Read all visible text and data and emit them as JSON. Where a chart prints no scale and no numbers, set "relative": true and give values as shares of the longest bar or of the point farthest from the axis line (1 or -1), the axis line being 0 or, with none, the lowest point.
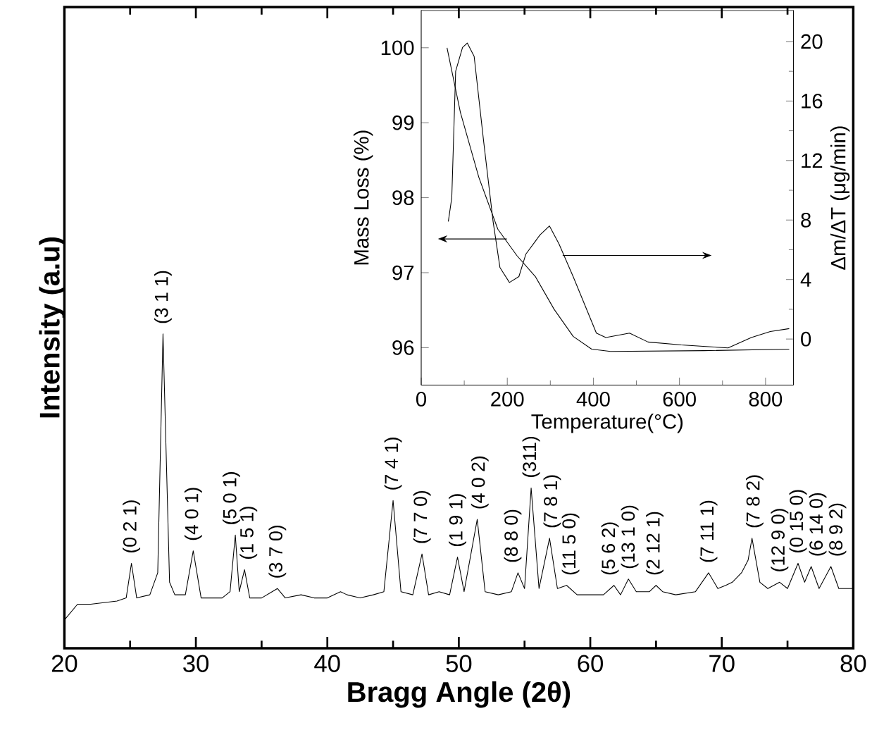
{
  "chart_data": [
    {
      "type": "line",
      "relative": true,
      "xlabel": "Bragg Angle (2θ)",
      "ylabel": "Intensity (a.u)",
      "xlim": [
        20,
        80
      ],
      "xticks": [
        20,
        30,
        40,
        50,
        60,
        70,
        80
      ],
      "color": "#000000",
      "x": [
        20,
        21,
        22,
        24,
        24.7,
        25.1,
        25.5,
        26.5,
        27.1,
        27.5,
        28,
        28.4,
        29.2,
        29.8,
        30.4,
        31,
        32,
        32.6,
        33.0,
        33.3,
        33.7,
        34.1,
        35,
        35.8,
        36.2,
        36.8,
        38,
        39,
        40,
        41,
        41.5,
        42.5,
        43.5,
        44.3,
        45.0,
        45.6,
        46.5,
        47.2,
        47.7,
        48.5,
        49.3,
        49.9,
        50.4,
        51.4,
        52,
        53,
        54,
        54.5,
        55,
        55.5,
        56.1,
        56.9,
        57.5,
        58.2,
        59,
        60,
        61,
        61.8,
        62.3,
        62.9,
        63.5,
        64.5,
        65.0,
        65.5,
        66.5,
        68,
        69.0,
        69.7,
        70.3,
        70.8,
        71.5,
        72.0,
        72.3,
        72.9,
        73.5,
        74.4,
        75.0,
        75.8,
        76.3,
        76.8,
        77.4,
        78.3,
        78.9,
        80
      ],
      "values": [
        0.09,
        0.14,
        0.14,
        0.15,
        0.16,
        0.27,
        0.16,
        0.17,
        0.24,
        1.0,
        0.21,
        0.17,
        0.17,
        0.31,
        0.16,
        0.16,
        0.16,
        0.18,
        0.36,
        0.18,
        0.25,
        0.16,
        0.16,
        0.18,
        0.19,
        0.16,
        0.17,
        0.16,
        0.16,
        0.18,
        0.17,
        0.16,
        0.17,
        0.18,
        0.47,
        0.18,
        0.17,
        0.3,
        0.17,
        0.18,
        0.17,
        0.29,
        0.18,
        0.41,
        0.18,
        0.17,
        0.18,
        0.24,
        0.19,
        0.51,
        0.19,
        0.35,
        0.19,
        0.2,
        0.17,
        0.17,
        0.17,
        0.2,
        0.17,
        0.22,
        0.18,
        0.18,
        0.2,
        0.18,
        0.17,
        0.18,
        0.24,
        0.19,
        0.2,
        0.21,
        0.24,
        0.28,
        0.35,
        0.21,
        0.19,
        0.21,
        0.19,
        0.27,
        0.21,
        0.26,
        0.19,
        0.26,
        0.19,
        0.19
      ],
      "annotations": [
        {
          "text": "(0 2 1)",
          "x": 25.1,
          "y": 0.27
        },
        {
          "text": "(3 1 1)",
          "x": 27.5,
          "y": 1.0
        },
        {
          "text": "(4 0 1)",
          "x": 29.8,
          "y": 0.31
        },
        {
          "text": "(5 0 1)",
          "x": 32.7,
          "y": 0.36
        },
        {
          "text": "(1 5 1)",
          "x": 34.0,
          "y": 0.25
        },
        {
          "text": "(3 7 0)",
          "x": 36.2,
          "y": 0.19
        },
        {
          "text": "(7 4 1)",
          "x": 45.0,
          "y": 0.47
        },
        {
          "text": "(7 7 0)",
          "x": 47.2,
          "y": 0.3
        },
        {
          "text": "(1 9 1)",
          "x": 49.9,
          "y": 0.29
        },
        {
          "text": "(4 0 2)",
          "x": 51.6,
          "y": 0.41
        },
        {
          "text": "(8 8 0)",
          "x": 54.1,
          "y": 0.24
        },
        {
          "text": "(311)",
          "x": 55.5,
          "y": 0.51
        },
        {
          "text": "(7 8 1)",
          "x": 57.1,
          "y": 0.35
        },
        {
          "text": "(11 5 0)",
          "x": 58.5,
          "y": 0.2
        },
        {
          "text": "(5 6 2)",
          "x": 61.5,
          "y": 0.2
        },
        {
          "text": "(13 1 0)",
          "x": 63.0,
          "y": 0.22
        },
        {
          "text": "(2 12 1)",
          "x": 64.9,
          "y": 0.2
        },
        {
          "text": "(7 11 1)",
          "x": 69.0,
          "y": 0.24
        },
        {
          "text": "(7 8 2)",
          "x": 72.5,
          "y": 0.35
        },
        {
          "text": "(12 9 0)",
          "x": 74.4,
          "y": 0.21
        },
        {
          "text": "(0 15 0)",
          "x": 75.8,
          "y": 0.27
        },
        {
          "text": "(6 14 0)",
          "x": 77.3,
          "y": 0.26
        },
        {
          "text": "(8 9 2)",
          "x": 78.8,
          "y": 0.26
        }
      ]
    },
    {
      "type": "line",
      "xlabel": "Temperature(°C)",
      "ylabel": "Mass Loss (%)",
      "y2label": "Δm/ΔT (μg/min)",
      "xlim": [
        0,
        865
      ],
      "xticks": [
        0,
        200,
        400,
        600,
        800
      ],
      "ylim": [
        95.5,
        100.5
      ],
      "yticks": [
        96,
        97,
        98,
        99,
        100
      ],
      "y2lim": [
        -3.1,
        22.1
      ],
      "y2ticks": [
        0,
        4,
        8,
        12,
        16,
        20
      ],
      "series": [
        {
          "color": "#000000",
          "x": [
            60,
            91,
            134,
            178,
            222,
            265,
            309,
            353,
            396,
            440,
            658,
            855
          ],
          "values": [
            100.0,
            99.14,
            98.27,
            97.58,
            97.23,
            96.95,
            96.51,
            96.15,
            95.98,
            95.95,
            95.96,
            95.98
          ]
        },
        {
          "color": "#000000",
          "axis": "y2",
          "x": [
            63,
            71,
            80,
            96,
            107,
            123,
            145,
            167,
            183,
            205,
            227,
            243,
            276,
            298,
            320,
            353,
            380,
            407,
            429,
            484,
            527,
            604,
            713,
            767,
            811,
            855
          ],
          "values": [
            7.9,
            9.5,
            18.0,
            19.6,
            19.9,
            19.0,
            13.3,
            7.9,
            4.8,
            3.8,
            4.2,
            5.7,
            7.0,
            7.6,
            6.4,
            4.2,
            2.3,
            0.4,
            0.1,
            0.4,
            -0.2,
            -0.4,
            -0.6,
            0.1,
            0.5,
            0.7
          ]
        }
      ]
    }
  ]
}
